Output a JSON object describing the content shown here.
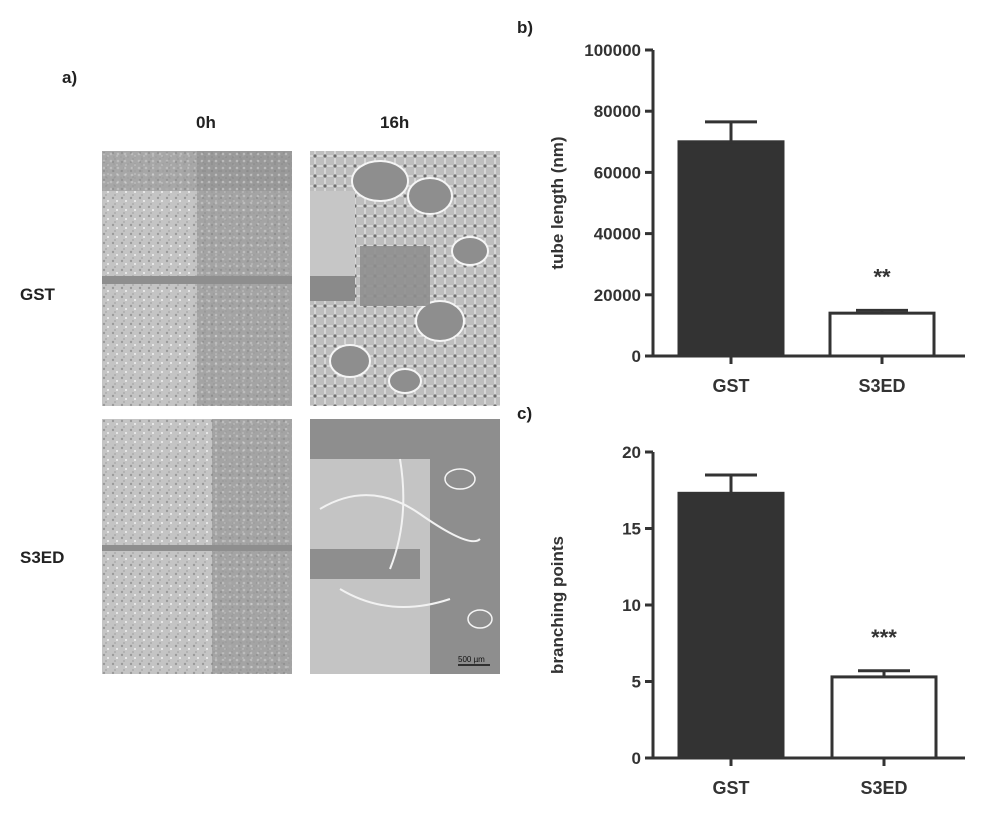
{
  "figure": {
    "panel_a": {
      "label": "a)",
      "columns": [
        "0h",
        "16h"
      ],
      "rows": [
        "GST",
        "S3ED"
      ],
      "scale_bar": "500 µm"
    },
    "panel_b": {
      "label": "b)"
    },
    "panel_c": {
      "label": "c)"
    }
  },
  "colors": {
    "gst_bar": "#333333",
    "s3ed_bar": "#ffffff",
    "axis": "#333333",
    "micrograph_light": "#c8c8c8",
    "micrograph_dark": "#8e8e8e"
  },
  "chart_data": [
    {
      "type": "bar",
      "panel": "b)",
      "categories": [
        "GST",
        "S3ED"
      ],
      "values": [
        70000,
        14000
      ],
      "errors": [
        6500,
        900
      ],
      "significance": [
        "",
        "**"
      ],
      "ylabel": "tube length (nm)",
      "ylim": [
        0,
        100000
      ],
      "yticks": [
        "0",
        "20000",
        "40000",
        "60000",
        "80000",
        "100000"
      ],
      "grid": false
    },
    {
      "type": "bar",
      "panel": "c)",
      "categories": [
        "GST",
        "S3ED"
      ],
      "values": [
        17.3,
        5.3
      ],
      "errors": [
        1.2,
        0.4
      ],
      "significance": [
        "",
        "***"
      ],
      "ylabel": "branching points",
      "ylim": [
        0,
        20
      ],
      "yticks": [
        "0",
        "5",
        "10",
        "15",
        "20"
      ],
      "grid": false
    }
  ]
}
